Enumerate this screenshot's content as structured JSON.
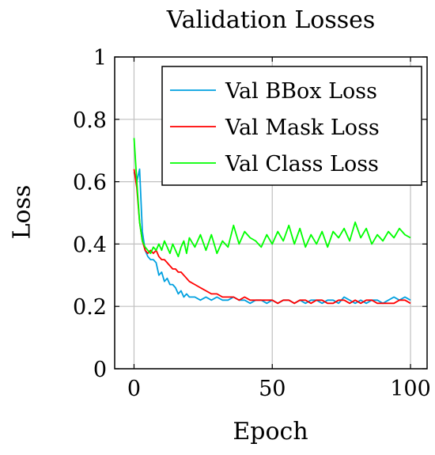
{
  "chart_data": {
    "type": "line",
    "title": "Validation Losses",
    "xlabel": "Epoch",
    "ylabel": "Loss",
    "xlim": [
      -7,
      106
    ],
    "ylim": [
      0,
      1
    ],
    "xticks": [
      0,
      50,
      100
    ],
    "yticks": [
      0,
      0.2,
      0.4,
      0.6,
      0.8,
      1
    ],
    "grid": true,
    "legend_position": "top-right",
    "series": [
      {
        "name": "Val BBox Loss",
        "color": "#00a0e0",
        "x": [
          0,
          1,
          2,
          3,
          4,
          5,
          6,
          7,
          8,
          9,
          10,
          11,
          12,
          13,
          14,
          15,
          16,
          17,
          18,
          19,
          20,
          22,
          24,
          26,
          28,
          30,
          32,
          34,
          36,
          38,
          40,
          42,
          44,
          46,
          48,
          50,
          52,
          54,
          56,
          58,
          60,
          62,
          64,
          66,
          68,
          70,
          72,
          74,
          76,
          78,
          80,
          82,
          84,
          86,
          88,
          90,
          92,
          94,
          96,
          98,
          100
        ],
        "y": [
          0.63,
          0.6,
          0.64,
          0.44,
          0.38,
          0.36,
          0.35,
          0.35,
          0.34,
          0.3,
          0.31,
          0.28,
          0.29,
          0.27,
          0.27,
          0.26,
          0.24,
          0.25,
          0.23,
          0.24,
          0.23,
          0.23,
          0.22,
          0.23,
          0.22,
          0.23,
          0.22,
          0.22,
          0.23,
          0.22,
          0.22,
          0.21,
          0.22,
          0.22,
          0.21,
          0.22,
          0.21,
          0.22,
          0.22,
          0.21,
          0.22,
          0.21,
          0.22,
          0.22,
          0.21,
          0.22,
          0.22,
          0.21,
          0.23,
          0.22,
          0.21,
          0.22,
          0.21,
          0.22,
          0.22,
          0.21,
          0.22,
          0.23,
          0.22,
          0.23,
          0.22
        ]
      },
      {
        "name": "Val Mask Loss",
        "color": "#ff0000",
        "x": [
          0,
          1,
          2,
          3,
          4,
          5,
          6,
          7,
          8,
          9,
          10,
          11,
          12,
          13,
          14,
          15,
          16,
          17,
          18,
          19,
          20,
          22,
          24,
          26,
          28,
          30,
          32,
          34,
          36,
          38,
          40,
          42,
          44,
          46,
          48,
          50,
          52,
          54,
          56,
          58,
          60,
          62,
          64,
          66,
          68,
          70,
          72,
          74,
          76,
          78,
          80,
          82,
          84,
          86,
          88,
          90,
          92,
          94,
          96,
          98,
          100
        ],
        "y": [
          0.64,
          0.58,
          0.47,
          0.41,
          0.38,
          0.37,
          0.38,
          0.37,
          0.38,
          0.36,
          0.35,
          0.35,
          0.34,
          0.33,
          0.32,
          0.32,
          0.31,
          0.31,
          0.3,
          0.29,
          0.28,
          0.27,
          0.26,
          0.25,
          0.24,
          0.24,
          0.23,
          0.23,
          0.23,
          0.22,
          0.23,
          0.22,
          0.22,
          0.22,
          0.22,
          0.22,
          0.21,
          0.22,
          0.22,
          0.21,
          0.22,
          0.22,
          0.21,
          0.22,
          0.22,
          0.21,
          0.21,
          0.22,
          0.22,
          0.21,
          0.22,
          0.21,
          0.22,
          0.22,
          0.21,
          0.21,
          0.21,
          0.21,
          0.22,
          0.22,
          0.21
        ]
      },
      {
        "name": "Val Class Loss",
        "color": "#00ff00",
        "x": [
          0,
          1,
          2,
          3,
          4,
          5,
          6,
          7,
          8,
          9,
          10,
          11,
          12,
          13,
          14,
          15,
          16,
          17,
          18,
          19,
          20,
          22,
          24,
          26,
          28,
          30,
          32,
          34,
          36,
          38,
          40,
          42,
          44,
          46,
          48,
          50,
          52,
          54,
          56,
          58,
          60,
          62,
          64,
          66,
          68,
          70,
          72,
          74,
          76,
          78,
          80,
          82,
          84,
          86,
          88,
          90,
          92,
          94,
          96,
          98,
          100
        ],
        "y": [
          0.74,
          0.6,
          0.47,
          0.41,
          0.39,
          0.38,
          0.37,
          0.39,
          0.38,
          0.4,
          0.38,
          0.41,
          0.39,
          0.37,
          0.4,
          0.38,
          0.36,
          0.39,
          0.41,
          0.37,
          0.42,
          0.39,
          0.43,
          0.38,
          0.43,
          0.37,
          0.41,
          0.39,
          0.46,
          0.4,
          0.44,
          0.42,
          0.41,
          0.39,
          0.43,
          0.4,
          0.44,
          0.41,
          0.46,
          0.4,
          0.45,
          0.39,
          0.43,
          0.4,
          0.44,
          0.39,
          0.44,
          0.42,
          0.45,
          0.41,
          0.47,
          0.42,
          0.45,
          0.4,
          0.43,
          0.41,
          0.44,
          0.42,
          0.45,
          0.43,
          0.42
        ]
      }
    ]
  }
}
